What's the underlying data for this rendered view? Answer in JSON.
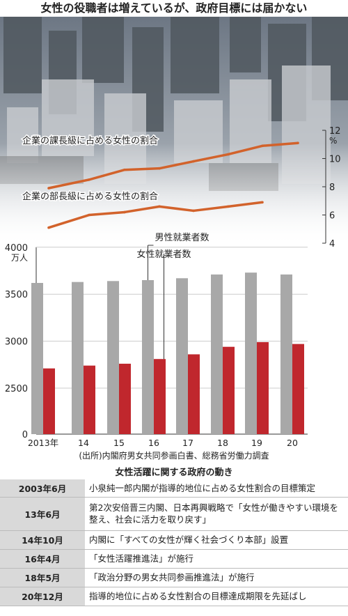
{
  "title": "女性の役職者は増えているが、政府目標には届かない",
  "source": "(出所)内閣府男女共同参画白書、総務省労働力調査",
  "table_title": "女性活躍に関する政府の動き",
  "timeline": [
    {
      "date": "2003年6月",
      "event": "小泉純一郎内閣が指導的地位に占める女性割合の目標策定"
    },
    {
      "date": "13年6月",
      "event": "第2次安倍晋三内閣、日本再興戦略で「女性が働きやすい環境を整え、社会に活力を取り戻す」"
    },
    {
      "date": "14年10月",
      "event": "内閣に「すべての女性が輝く社会づくり本部」設置"
    },
    {
      "date": "16年4月",
      "event": "「女性活躍推進法」が施行"
    },
    {
      "date": "18年5月",
      "event": "「政治分野の男女共同参画推進法」が施行"
    },
    {
      "date": "20年12月",
      "event": "指導的地位に占める女性割合の目標達成期限を先延ばし"
    }
  ],
  "colors": {
    "male": "#a8a8a8",
    "female": "#c0272d",
    "line": "#d2622b",
    "text": "#222222"
  },
  "chart_data": [
    {
      "type": "line",
      "x": [
        "2013",
        "14",
        "15",
        "16",
        "17",
        "18",
        "19",
        "20"
      ],
      "series": [
        {
          "name": "企業の課長級に占める女性の割合",
          "values": [
            7.9,
            8.5,
            9.2,
            9.3,
            9.8,
            10.3,
            10.9,
            11.1
          ]
        },
        {
          "name": "企業の部長級に占める女性の割合",
          "values": [
            5.1,
            6.0,
            6.2,
            6.6,
            6.3,
            6.6,
            6.9,
            null
          ]
        }
      ],
      "ylabel": "%",
      "yticks": [
        4,
        6,
        8,
        10,
        12
      ],
      "ylim": [
        4,
        12
      ]
    },
    {
      "type": "bar",
      "categories": [
        "2013年",
        "14",
        "15",
        "16",
        "17",
        "18",
        "19",
        "20"
      ],
      "series": [
        {
          "name": "男性就業者数",
          "values": [
            3620,
            3630,
            3640,
            3650,
            3670,
            3710,
            3730,
            3710
          ]
        },
        {
          "name": "女性就業者数",
          "values": [
            2710,
            2740,
            2760,
            2810,
            2860,
            2940,
            2990,
            2970
          ]
        }
      ],
      "ylabel": "万人",
      "yticks": [
        0,
        2500,
        3000,
        3500,
        4000
      ],
      "ylim": [
        0,
        4000
      ],
      "axis_break": true
    }
  ]
}
